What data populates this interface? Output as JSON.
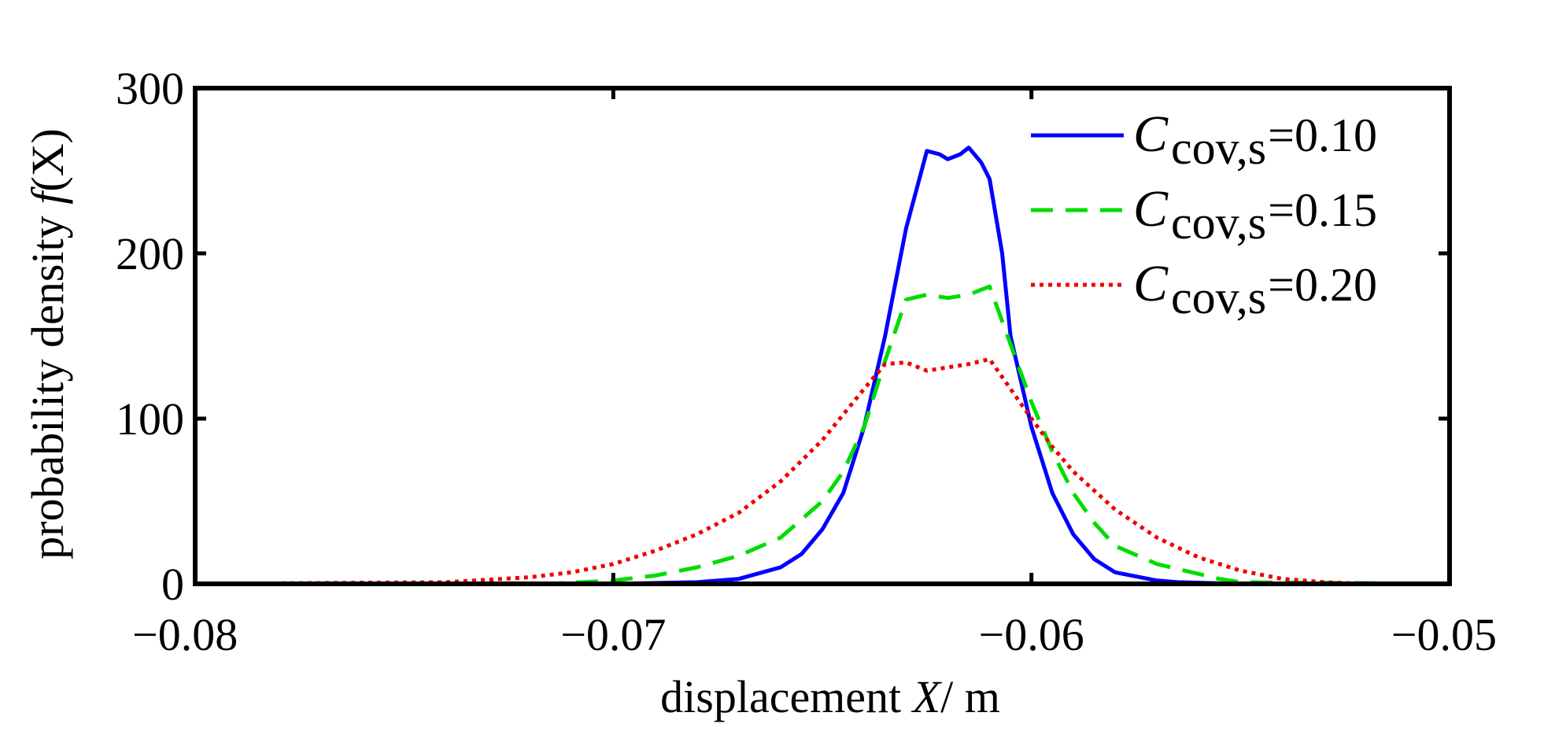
{
  "chart_data": {
    "type": "line",
    "title": "",
    "xlabel": {
      "prefix": "displacement ",
      "symbol": "X",
      "suffix": "/ m"
    },
    "ylabel": {
      "prefix": "probability density ",
      "symbol": "f",
      "suffix": "(X)"
    },
    "xlim": [
      -0.08,
      -0.05
    ],
    "ylim": [
      0,
      300
    ],
    "xticks": [
      {
        "value": -0.08,
        "label": "−0.08"
      },
      {
        "value": -0.07,
        "label": "−0.07"
      },
      {
        "value": -0.06,
        "label": "−0.06"
      },
      {
        "value": -0.05,
        "label": "−0.05"
      }
    ],
    "yticks": [
      {
        "value": 0,
        "label": "0"
      },
      {
        "value": 100,
        "label": "100"
      },
      {
        "value": 200,
        "label": "200"
      },
      {
        "value": 300,
        "label": "300"
      }
    ],
    "grid": false,
    "legend_position": "top-right",
    "legend_symbol": "C",
    "legend_subscript": "cov,s",
    "series": [
      {
        "name": "C cov,s=0.10",
        "value_label": "=0.10",
        "color": "#0000ff",
        "dash": "solid",
        "x": [
          -0.08,
          -0.075,
          -0.07,
          -0.068,
          -0.067,
          -0.066,
          -0.0655,
          -0.065,
          -0.0645,
          -0.064,
          -0.0635,
          -0.063,
          -0.0625,
          -0.0622,
          -0.062,
          -0.0617,
          -0.0615,
          -0.0612,
          -0.061,
          -0.0607,
          -0.0605,
          -0.06,
          -0.0595,
          -0.059,
          -0.0585,
          -0.058,
          -0.057,
          -0.0565,
          -0.055,
          -0.05
        ],
        "y": [
          0,
          0,
          0,
          1,
          3,
          10,
          18,
          33,
          55,
          95,
          150,
          215,
          262,
          260,
          257,
          260,
          264,
          255,
          245,
          200,
          150,
          95,
          55,
          30,
          15,
          7,
          2,
          1,
          0,
          0
        ]
      },
      {
        "name": "C cov,s=0.15",
        "value_label": "=0.15",
        "color": "#00dd00",
        "dash": "dashed",
        "x": [
          -0.08,
          -0.075,
          -0.0715,
          -0.07,
          -0.069,
          -0.068,
          -0.067,
          -0.066,
          -0.065,
          -0.0645,
          -0.064,
          -0.0635,
          -0.063,
          -0.0625,
          -0.062,
          -0.0615,
          -0.061,
          -0.0605,
          -0.06,
          -0.0595,
          -0.059,
          -0.0585,
          -0.058,
          -0.057,
          -0.0555,
          -0.055,
          -0.05
        ],
        "y": [
          0,
          0,
          0,
          2,
          5,
          10,
          17,
          28,
          50,
          68,
          95,
          135,
          172,
          175,
          173,
          175,
          180,
          145,
          110,
          80,
          55,
          37,
          23,
          12,
          3,
          1,
          0
        ]
      },
      {
        "name": "C cov,s=0.20",
        "value_label": "=0.20",
        "color": "#ee0000",
        "dash": "dotted",
        "x": [
          -0.08,
          -0.074,
          -0.072,
          -0.071,
          -0.07,
          -0.069,
          -0.068,
          -0.067,
          -0.066,
          -0.065,
          -0.064,
          -0.0635,
          -0.063,
          -0.0625,
          -0.062,
          -0.0615,
          -0.061,
          -0.0605,
          -0.06,
          -0.0595,
          -0.059,
          -0.058,
          -0.057,
          -0.056,
          -0.055,
          -0.054,
          -0.053,
          -0.052,
          -0.05
        ],
        "y": [
          0,
          1,
          4,
          7,
          12,
          20,
          30,
          43,
          62,
          87,
          118,
          133,
          134,
          129,
          131,
          133,
          136,
          118,
          100,
          83,
          68,
          45,
          28,
          16,
          8,
          3,
          1,
          0,
          0
        ]
      }
    ]
  }
}
